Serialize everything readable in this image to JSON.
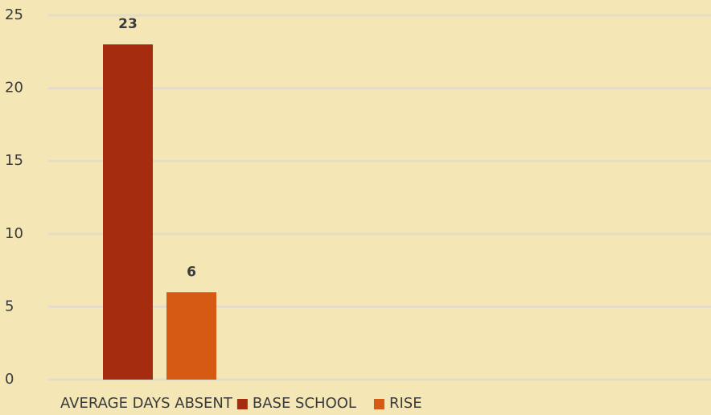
{
  "chart_data": {
    "type": "bar",
    "categories": [
      "AVERAGE DAYS ABSENT"
    ],
    "series": [
      {
        "name": "BASE SCHOOL",
        "color": "#a52c0e",
        "values": [
          23
        ]
      },
      {
        "name": "RISE",
        "color": "#d65914",
        "values": [
          6
        ]
      }
    ],
    "ylim": [
      0,
      25
    ],
    "yticks": [
      0,
      5,
      10,
      15,
      20,
      25
    ],
    "grid": true,
    "legend": "bottom"
  }
}
